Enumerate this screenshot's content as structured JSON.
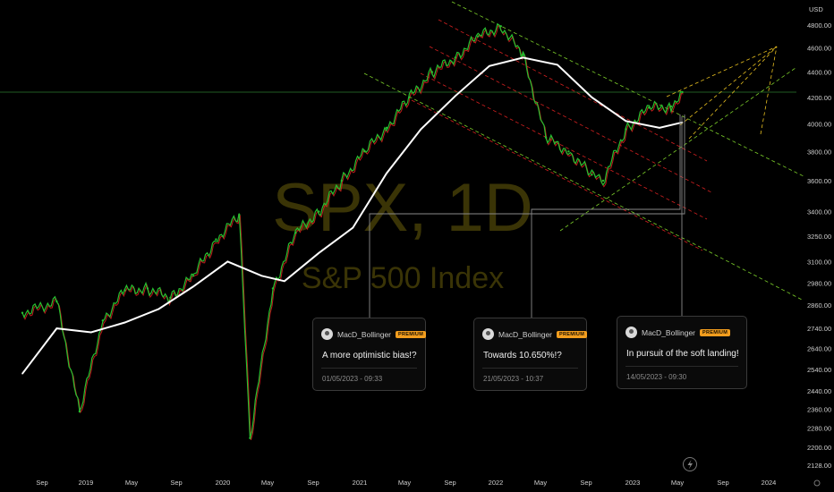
{
  "chart_data": {
    "type": "line",
    "title": "SPX, 1D",
    "subtitle": "S&P 500 Index",
    "currency": "USD",
    "y_scale": "log",
    "ylim": [
      2100,
      4950
    ],
    "y_ticks": [
      2128.0,
      2200.0,
      2280.0,
      2360.0,
      2440.0,
      2540.0,
      2640.0,
      2740.0,
      2860.0,
      2980.0,
      3100.0,
      3250.0,
      3400.0,
      3600.0,
      3800.0,
      4000.0,
      4200.0,
      4400.0,
      4600.0,
      4800.0
    ],
    "x_ticks": [
      "Sep",
      "2019",
      "May",
      "Sep",
      "2020",
      "May",
      "Sep",
      "2021",
      "May",
      "Sep",
      "2022",
      "May",
      "Sep",
      "2023",
      "May",
      "Sep",
      "2024"
    ],
    "series": [
      {
        "name": "",
        "color": "#26c030",
        "x": [
          "2018-07",
          "2018-10",
          "2018-12",
          "2019-02",
          "2019-04",
          "2019-06",
          "2019-08",
          "2019-10",
          "2019-12",
          "2020-02",
          "2020-03",
          "2020-05",
          "2020-07",
          "2020-09",
          "2020-11",
          "2021-01",
          "2021-03",
          "2021-05",
          "2021-07",
          "2021-09",
          "2021-11",
          "2022-01",
          "2022-03",
          "2022-05",
          "2022-07",
          "2022-09",
          "2022-10",
          "2022-12",
          "2023-02",
          "2023-04",
          "2023-05"
        ],
        "values": [
          2820,
          2880,
          2350,
          2780,
          2940,
          2950,
          2900,
          3020,
          3230,
          3380,
          2237,
          2950,
          3270,
          3400,
          3600,
          3800,
          3970,
          4200,
          4400,
          4520,
          4700,
          4790,
          4540,
          3900,
          3800,
          3640,
          3600,
          3960,
          4120,
          4130,
          4240
        ]
      },
      {
        "name": "",
        "color": "#ffffff",
        "x": [
          "2018-07",
          "2018-10",
          "2019-01",
          "2019-04",
          "2019-07",
          "2019-10",
          "2020-01",
          "2020-04",
          "2020-06",
          "2020-09",
          "2020-12",
          "2021-03",
          "2021-06",
          "2021-09",
          "2021-12",
          "2022-03",
          "2022-06",
          "2022-09",
          "2022-12",
          "2023-03",
          "2023-05"
        ],
        "values": [
          2520,
          2740,
          2720,
          2770,
          2840,
          2960,
          3100,
          3020,
          2990,
          3150,
          3300,
          3650,
          3960,
          4210,
          4450,
          4520,
          4460,
          4200,
          4020,
          3970,
          4010
        ]
      }
    ],
    "annotations": {
      "current_price_level": 4240,
      "cards": [
        {
          "author": "MacD_Bollinger",
          "badge": "PREMIUM",
          "title": "A more optimistic bias!?",
          "date": "01/05/2023 - 09:33"
        },
        {
          "author": "MacD_Bollinger",
          "badge": "PREMIUM",
          "title": "Towards 10.650%!?",
          "date": "21/05/2023 - 10:37"
        },
        {
          "author": "MacD_Bollinger",
          "badge": "PREMIUM",
          "title": "In pursuit of the soft landing!",
          "date": "14/05/2023 - 09:30"
        }
      ]
    },
    "colors": {
      "background": "#000000",
      "up": "#26c030",
      "down": "#e02020",
      "ma": "#ffffff",
      "channel_red": "#d42020",
      "channel_green": "#7ccf2a",
      "projection": "#e8c020",
      "watermark": "#3a3406"
    }
  }
}
